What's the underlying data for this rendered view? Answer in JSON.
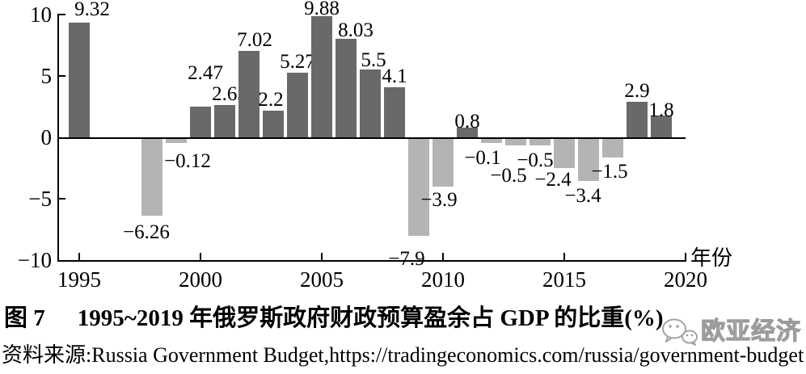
{
  "caption": {
    "figure_label": "图 7",
    "title": "1995~2019 年俄罗斯政府财政预算盈余占 GDP 的比重(%)"
  },
  "source": {
    "label": "资料来源:",
    "text": "Russia Government Budget,https://tradingeconomics.com/russia/government-budget"
  },
  "watermark": {
    "text": "欧亚经济"
  },
  "chart_data": {
    "type": "bar",
    "title": "1995~2019 年俄罗斯政府财政预算盈余占 GDP 的比重(%)",
    "x_axis_title": "年份",
    "ylabel": "",
    "years": [
      1995,
      1998,
      1999,
      2000,
      2001,
      2002,
      2003,
      2004,
      2005,
      2006,
      2007,
      2008,
      2009,
      2010,
      2011,
      2012,
      2013,
      2014,
      2015,
      2016,
      2017,
      2018,
      2019
    ],
    "values": [
      9.32,
      -6.26,
      -0.12,
      2.47,
      2.63,
      7.02,
      2.2,
      5.27,
      9.88,
      8.03,
      5.5,
      4.1,
      -7.9,
      -3.9,
      0.8,
      -0.1,
      -0.5,
      -0.5,
      -2.4,
      -3.4,
      -1.5,
      2.9,
      1.8
    ],
    "ylim": [
      -10,
      10
    ],
    "yticks": [
      10,
      5,
      0,
      -5,
      -10
    ],
    "xticks": [
      1995,
      2000,
      2005,
      2010,
      2015,
      2020
    ],
    "grid": false,
    "legend": "none",
    "colors": {
      "positive_bar": "#696969",
      "negative_bar": "#b4b4b4",
      "axis": "#000000"
    },
    "value_label_offsets": {
      "1995": [
        16,
        -3
      ],
      "1998": [
        -7,
        4
      ],
      "1999": [
        14,
        6
      ],
      "2000": [
        6,
        -28
      ],
      "2001": [
        6,
        0
      ],
      "2002": [
        7,
        0
      ],
      "2003": [
        -3,
        0
      ],
      "2006": [
        12,
        3
      ],
      "2007": [
        4,
        2
      ],
      "2009": [
        -15,
        12
      ],
      "2010": [
        -5,
        0
      ],
      "2011": [
        0,
        6
      ],
      "2012": [
        -11,
        2
      ],
      "2013": [
        -9,
        21
      ],
      "2014": [
        -6,
        2
      ],
      "2015": [
        -14,
        -2
      ],
      "2016": [
        -7,
        2
      ],
      "2017": [
        -4,
        1
      ],
      "2019": [
        0,
        7
      ]
    }
  }
}
